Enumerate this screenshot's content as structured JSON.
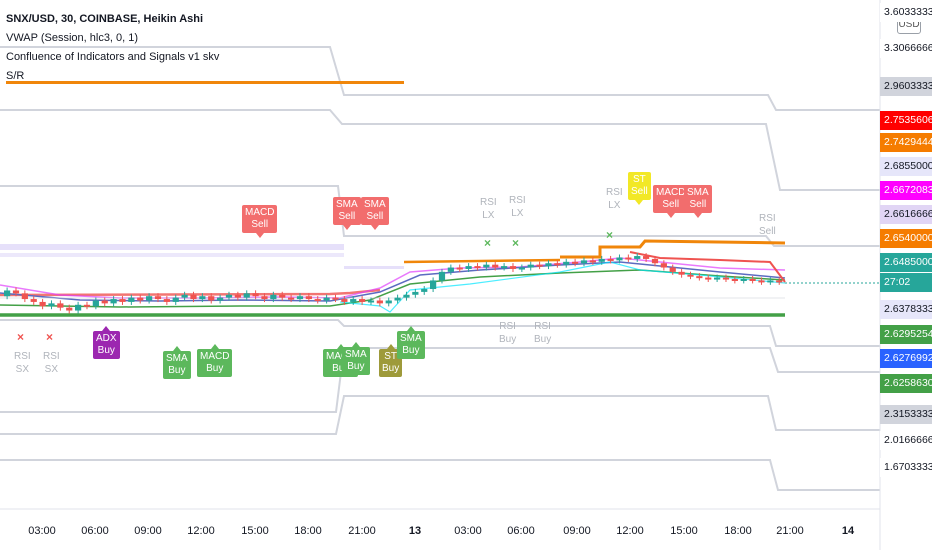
{
  "legend": {
    "symbol": "SNX/USD, 30, COINBASE, Heikin Ashi",
    "vwap": "VWAP (Session, hlc3, 0, 1)",
    "confluence": "Confluence of Indicators and Signals v1 skv",
    "sr": "S/R"
  },
  "currency": "USD",
  "colors": {
    "bull": "#26a69a",
    "bear": "#ef5350",
    "orange": "#f0860a",
    "green_level": "#43a047",
    "sell_label": "#f26d6d",
    "buy_label": "#5cb85c",
    "adx": "#9c27b0",
    "st_buy": "#9e9a3a",
    "st_sell": "#f2e826"
  },
  "price_axis": [
    {
      "text": "3.60333333",
      "bg": "#ffffff",
      "fg": "#131722"
    },
    {
      "text": "3.30666667",
      "bg": "#ffffff",
      "fg": "#131722"
    },
    {
      "text": "2.96033333",
      "bg": "#d1d4dc",
      "fg": "#131722"
    },
    {
      "text": "2.75356061",
      "bg": "#ff0000",
      "fg": "#ffffff"
    },
    {
      "text": "2.74294444",
      "bg": "#f57c00",
      "fg": "#ffffff"
    },
    {
      "text": "2.68550000",
      "bg": "#e6e6fa",
      "fg": "#131722"
    },
    {
      "text": "2.66720833",
      "bg": "#ff00ff",
      "fg": "#ffffff"
    },
    {
      "text": "2.66166667",
      "bg": "#e1d5f5",
      "fg": "#131722"
    },
    {
      "text": "2.65400000",
      "bg": "#f57c00",
      "fg": "#ffffff"
    },
    {
      "text": "2.64850000",
      "bg": "#26a69a",
      "fg": "#ffffff"
    },
    {
      "text": "27:02",
      "bg": "#26a69a",
      "fg": "#ffffff"
    },
    {
      "text": "2.63783333",
      "bg": "#e6e6fa",
      "fg": "#131722"
    },
    {
      "text": "2.62952543",
      "bg": "#43a047",
      "fg": "#ffffff"
    },
    {
      "text": "2.62769926",
      "bg": "#2962ff",
      "fg": "#ffffff"
    },
    {
      "text": "2.62586309",
      "bg": "#43a047",
      "fg": "#ffffff"
    },
    {
      "text": "2.31533333",
      "bg": "#d1d4dc",
      "fg": "#131722"
    },
    {
      "text": "2.01666667",
      "bg": "#ffffff",
      "fg": "#131722"
    },
    {
      "text": "1.67033333",
      "bg": "#ffffff",
      "fg": "#131722"
    }
  ],
  "time_axis": [
    "03:00",
    "06:00",
    "09:00",
    "12:00",
    "15:00",
    "18:00",
    "21:00",
    "13",
    "03:00",
    "06:00",
    "09:00",
    "12:00",
    "15:00",
    "18:00",
    "21:00",
    "14"
  ],
  "signals": {
    "sell": [
      "MACD\nSell",
      "SMA\nSell",
      "SMA\nSell",
      "MACD\nSell",
      "SMA\nSell"
    ],
    "buy": [
      "SMA\nBuy",
      "MACD\nBuy",
      "MACD\nBuy",
      "SMA\nBuy",
      "SMA\nBuy"
    ],
    "adx_buy": "ADX\nBuy",
    "st_buy": "ST\nBuy",
    "st_sell": "ST\nSell",
    "ghost": [
      "RSI\nSX",
      "RSI\nSX",
      "RSI\nLX",
      "RSI\nLX",
      "RSI\nLX",
      "RSI\nBuy",
      "RSI\nBuy",
      "RSI\nSell"
    ]
  },
  "chart_data": {
    "type": "candlestick",
    "title": "SNX/USD, 30, COINBASE, Heikin Ashi",
    "ylim": [
      1.64,
      3.66
    ],
    "support_resistance": [
      3.30666667,
      2.96033333,
      2.6855,
      2.66166667,
      2.63783333,
      2.31533333,
      2.01666667
    ],
    "indicator_levels": {
      "orange": 2.654,
      "green": 2.62586309,
      "last": 2.6485
    },
    "candles": [
      [
        2.638,
        2.642
      ],
      [
        2.642,
        2.64
      ],
      [
        2.64,
        2.636
      ],
      [
        2.636,
        2.634
      ],
      [
        2.634,
        2.631
      ],
      [
        2.631,
        2.633
      ],
      [
        2.633,
        2.63
      ],
      [
        2.63,
        2.628
      ],
      [
        2.628,
        2.632
      ],
      [
        2.632,
        2.631
      ],
      [
        2.631,
        2.635
      ],
      [
        2.635,
        2.633
      ],
      [
        2.633,
        2.636
      ],
      [
        2.636,
        2.634
      ],
      [
        2.634,
        2.637
      ],
      [
        2.637,
        2.635
      ],
      [
        2.635,
        2.638
      ],
      [
        2.638,
        2.636
      ],
      [
        2.636,
        2.634
      ],
      [
        2.634,
        2.637
      ],
      [
        2.637,
        2.639
      ],
      [
        2.639,
        2.636
      ],
      [
        2.636,
        2.638
      ],
      [
        2.638,
        2.635
      ],
      [
        2.635,
        2.637
      ],
      [
        2.637,
        2.639
      ],
      [
        2.639,
        2.637
      ],
      [
        2.637,
        2.64
      ],
      [
        2.64,
        2.638
      ],
      [
        2.638,
        2.636
      ],
      [
        2.636,
        2.639
      ],
      [
        2.639,
        2.637
      ],
      [
        2.637,
        2.636
      ],
      [
        2.636,
        2.638
      ],
      [
        2.638,
        2.636
      ],
      [
        2.636,
        2.635
      ],
      [
        2.635,
        2.637
      ],
      [
        2.637,
        2.636
      ],
      [
        2.636,
        2.634
      ],
      [
        2.634,
        2.636
      ],
      [
        2.636,
        2.634
      ],
      [
        2.634,
        2.635
      ],
      [
        2.635,
        2.633
      ],
      [
        2.633,
        2.635
      ],
      [
        2.635,
        2.637
      ],
      [
        2.637,
        2.639
      ],
      [
        2.639,
        2.641
      ],
      [
        2.641,
        2.643
      ],
      [
        2.643,
        2.649
      ],
      [
        2.649,
        2.655
      ],
      [
        2.655,
        2.658
      ],
      [
        2.658,
        2.657
      ],
      [
        2.657,
        2.659
      ],
      [
        2.659,
        2.658
      ],
      [
        2.658,
        2.66
      ],
      [
        2.66,
        2.658
      ],
      [
        2.658,
        2.659
      ],
      [
        2.659,
        2.657
      ],
      [
        2.657,
        2.658
      ],
      [
        2.658,
        2.66
      ],
      [
        2.66,
        2.659
      ],
      [
        2.659,
        2.661
      ],
      [
        2.661,
        2.66
      ],
      [
        2.66,
        2.662
      ],
      [
        2.662,
        2.661
      ],
      [
        2.661,
        2.663
      ],
      [
        2.663,
        2.662
      ],
      [
        2.662,
        2.664
      ],
      [
        2.664,
        2.663
      ],
      [
        2.663,
        2.665
      ],
      [
        2.665,
        2.664
      ],
      [
        2.664,
        2.666
      ],
      [
        2.666,
        2.664
      ],
      [
        2.664,
        2.661
      ],
      [
        2.661,
        2.658
      ],
      [
        2.658,
        2.655
      ],
      [
        2.655,
        2.653
      ],
      [
        2.653,
        2.652
      ],
      [
        2.652,
        2.651
      ],
      [
        2.651,
        2.65
      ],
      [
        2.65,
        2.651
      ],
      [
        2.651,
        2.65
      ],
      [
        2.65,
        2.649
      ],
      [
        2.649,
        2.65
      ],
      [
        2.65,
        2.649
      ],
      [
        2.649,
        2.648
      ],
      [
        2.648,
        2.649
      ],
      [
        2.649,
        2.648
      ]
    ]
  }
}
